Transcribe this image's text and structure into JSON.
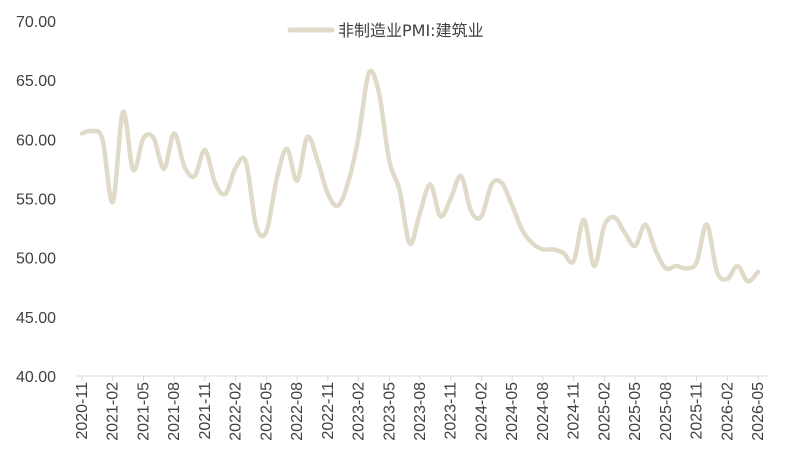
{
  "chart_data": {
    "type": "line",
    "title": "",
    "xlabel": "",
    "ylabel": "",
    "ylim": [
      40,
      70
    ],
    "y_ticks": [
      "40.00",
      "45.00",
      "50.00",
      "55.00",
      "60.00",
      "65.00",
      "70.00"
    ],
    "x_tick_labels": [
      "2020-11",
      "2021-02",
      "2021-05",
      "2021-08",
      "2021-11",
      "2022-02",
      "2022-05",
      "2022-08",
      "2022-11",
      "2023-02",
      "2023-05",
      "2023-08",
      "2023-11",
      "2024-02",
      "2024-05",
      "2024-08",
      "2024-11",
      "2025-02",
      "2025-05",
      "2025-08",
      "2025-11",
      "2026-02",
      "2026-05"
    ],
    "legend_position": "top",
    "grid": false,
    "series": [
      {
        "name": "非制造业PMI:建筑业",
        "color": "#E0DBC8",
        "x": [
          "2020-11",
          "2020-12",
          "2021-01",
          "2021-02",
          "2021-03",
          "2021-04",
          "2021-05",
          "2021-06",
          "2021-07",
          "2021-08",
          "2021-09",
          "2021-10",
          "2021-11",
          "2021-12",
          "2022-01",
          "2022-02",
          "2022-03",
          "2022-04",
          "2022-05",
          "2022-06",
          "2022-07",
          "2022-08",
          "2022-09",
          "2022-10",
          "2022-11",
          "2022-12",
          "2023-01",
          "2023-02",
          "2023-03",
          "2023-04",
          "2023-05",
          "2023-06",
          "2023-07",
          "2023-08",
          "2023-09",
          "2023-10",
          "2023-11",
          "2023-12",
          "2024-01",
          "2024-02",
          "2024-03",
          "2024-04",
          "2024-05",
          "2024-06",
          "2024-07",
          "2024-08",
          "2024-09",
          "2024-10",
          "2024-11",
          "2024-12",
          "2025-01",
          "2025-02",
          "2025-03",
          "2025-04",
          "2025-05",
          "2025-06",
          "2025-07",
          "2025-08",
          "2025-09",
          "2025-10",
          "2025-11",
          "2025-12",
          "2026-01",
          "2026-02",
          "2026-03",
          "2026-04",
          "2026-05"
        ],
        "values": [
          60.5,
          60.7,
          60.0,
          54.7,
          62.3,
          57.4,
          60.1,
          60.1,
          57.5,
          60.5,
          57.7,
          56.9,
          59.1,
          56.3,
          55.4,
          57.6,
          58.1,
          52.7,
          52.2,
          56.6,
          59.2,
          56.5,
          60.2,
          58.2,
          55.4,
          54.4,
          56.4,
          60.2,
          65.6,
          63.9,
          58.2,
          55.7,
          51.2,
          53.8,
          56.2,
          53.5,
          55.0,
          56.9,
          53.9,
          53.5,
          56.2,
          56.3,
          54.4,
          52.3,
          51.2,
          50.7,
          50.7,
          50.4,
          49.7,
          53.2,
          49.3,
          52.7,
          53.4,
          52.1,
          51.0,
          52.8,
          50.6,
          49.1,
          49.3,
          49.1,
          49.6,
          52.8,
          48.8,
          48.2,
          49.3,
          48.0,
          48.8
        ]
      }
    ]
  }
}
